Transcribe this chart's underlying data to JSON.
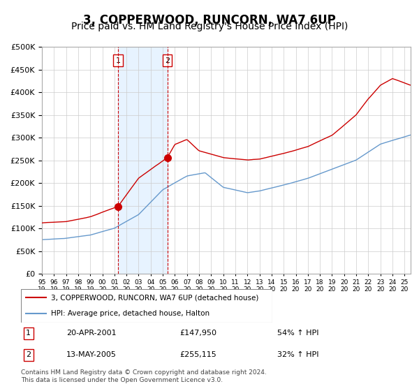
{
  "title": "3, COPPERWOOD, RUNCORN, WA7 6UP",
  "subtitle": "Price paid vs. HM Land Registry's House Price Index (HPI)",
  "title_fontsize": 12,
  "subtitle_fontsize": 10,
  "ylim": [
    0,
    500000
  ],
  "ytick_step": 50000,
  "background_color": "#ffffff",
  "plot_bg_color": "#ffffff",
  "grid_color": "#cccccc",
  "red_line_color": "#cc0000",
  "blue_line_color": "#6699cc",
  "shade_color": "#ddeeff",
  "vline_color": "#cc0000",
  "marker_color": "#cc0000",
  "purchase1_date_num": 2001.3,
  "purchase1_price": 147950,
  "purchase1_label": "20-APR-2001",
  "purchase1_price_str": "£147,950",
  "purchase1_hpi": "54% ↑ HPI",
  "purchase2_date_num": 2005.37,
  "purchase2_price": 255115,
  "purchase2_label": "13-MAY-2005",
  "purchase2_price_str": "£255,115",
  "purchase2_hpi": "32% ↑ HPI",
  "legend_entry1": "3, COPPERWOOD, RUNCORN, WA7 6UP (detached house)",
  "legend_entry2": "HPI: Average price, detached house, Halton",
  "footnote": "Contains HM Land Registry data © Crown copyright and database right 2024.\nThis data is licensed under the Open Government Licence v3.0.",
  "xmin": 1995.0,
  "xmax": 2025.5
}
